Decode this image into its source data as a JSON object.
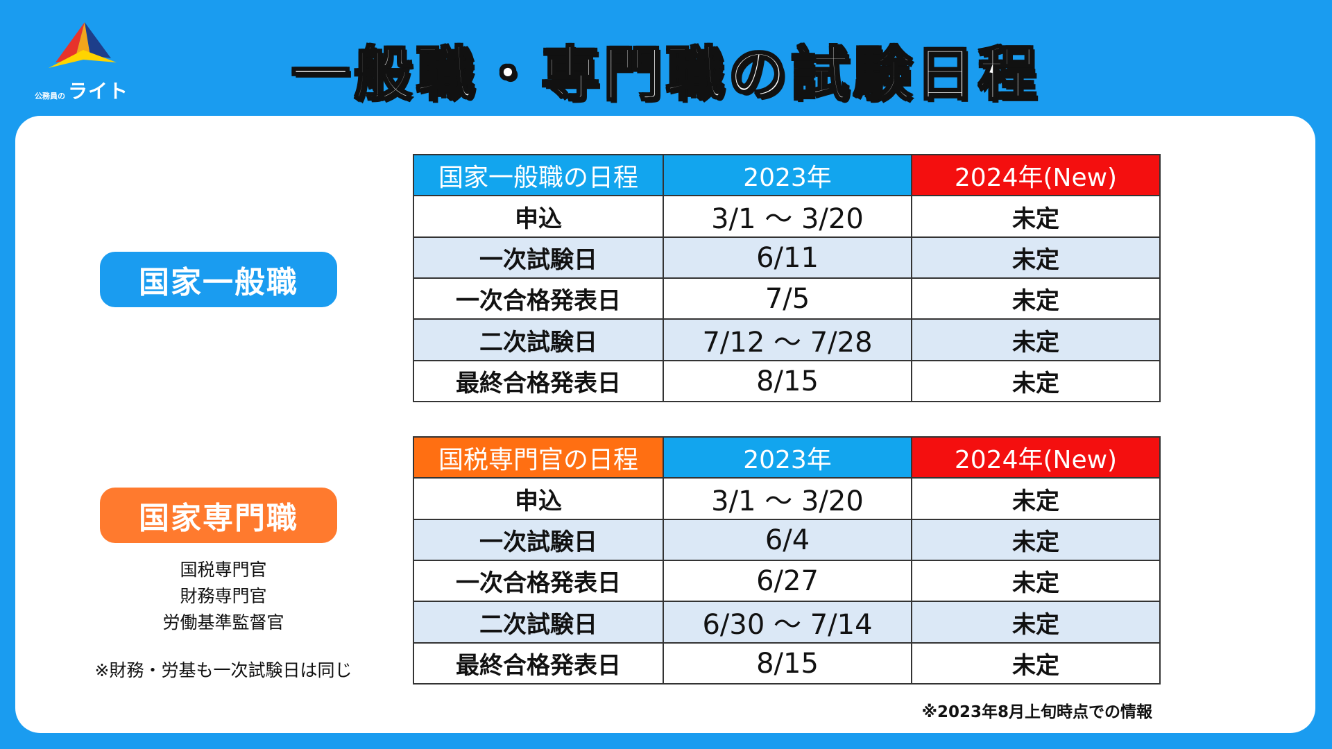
{
  "logo": {
    "sub_text": "公務員の",
    "main_text": "ライト"
  },
  "title": "一般職・専門職の試験日程",
  "categories": {
    "general": {
      "label": "国家一般職",
      "color": "#1a9cf0"
    },
    "specialist": {
      "label": "国家専門職",
      "color": "#ff7a2e",
      "positions": [
        "国税専門官",
        "財務専門官",
        "労働基準監督官"
      ],
      "note": "※財務・労基も一次試験日は同じ"
    }
  },
  "tables": {
    "general": {
      "headers": [
        "国家一般職の日程",
        "2023年",
        "2024年(New)"
      ],
      "rows": [
        {
          "label": "申込",
          "y2023": "3/1 ～ 3/20",
          "y2024": "未定"
        },
        {
          "label": "一次試験日",
          "y2023": "6/11",
          "y2024": "未定"
        },
        {
          "label": "一次合格発表日",
          "y2023": "7/5",
          "y2024": "未定"
        },
        {
          "label": "二次試験日",
          "y2023": "7/12 ～ 7/28",
          "y2024": "未定"
        },
        {
          "label": "最終合格発表日",
          "y2023": "8/15",
          "y2024": "未定"
        }
      ]
    },
    "specialist": {
      "headers": [
        "国税専門官の日程",
        "2023年",
        "2024年(New)"
      ],
      "rows": [
        {
          "label": "申込",
          "y2023": "3/1 ～ 3/20",
          "y2024": "未定"
        },
        {
          "label": "一次試験日",
          "y2023": "6/4",
          "y2024": "未定"
        },
        {
          "label": "一次合格発表日",
          "y2023": "6/27",
          "y2024": "未定"
        },
        {
          "label": "二次試験日",
          "y2023": "6/30 ～ 7/14",
          "y2024": "未定"
        },
        {
          "label": "最終合格発表日",
          "y2023": "8/15",
          "y2024": "未定"
        }
      ]
    }
  },
  "source_note": "※2023年8月上旬時点での情報",
  "colors": {
    "background": "#1a9cf0",
    "header_2023": "#12a5ee",
    "header_2024": "#f40f0f",
    "header_specialist": "#ff6f12",
    "row_alt": "#dbe8f6"
  }
}
